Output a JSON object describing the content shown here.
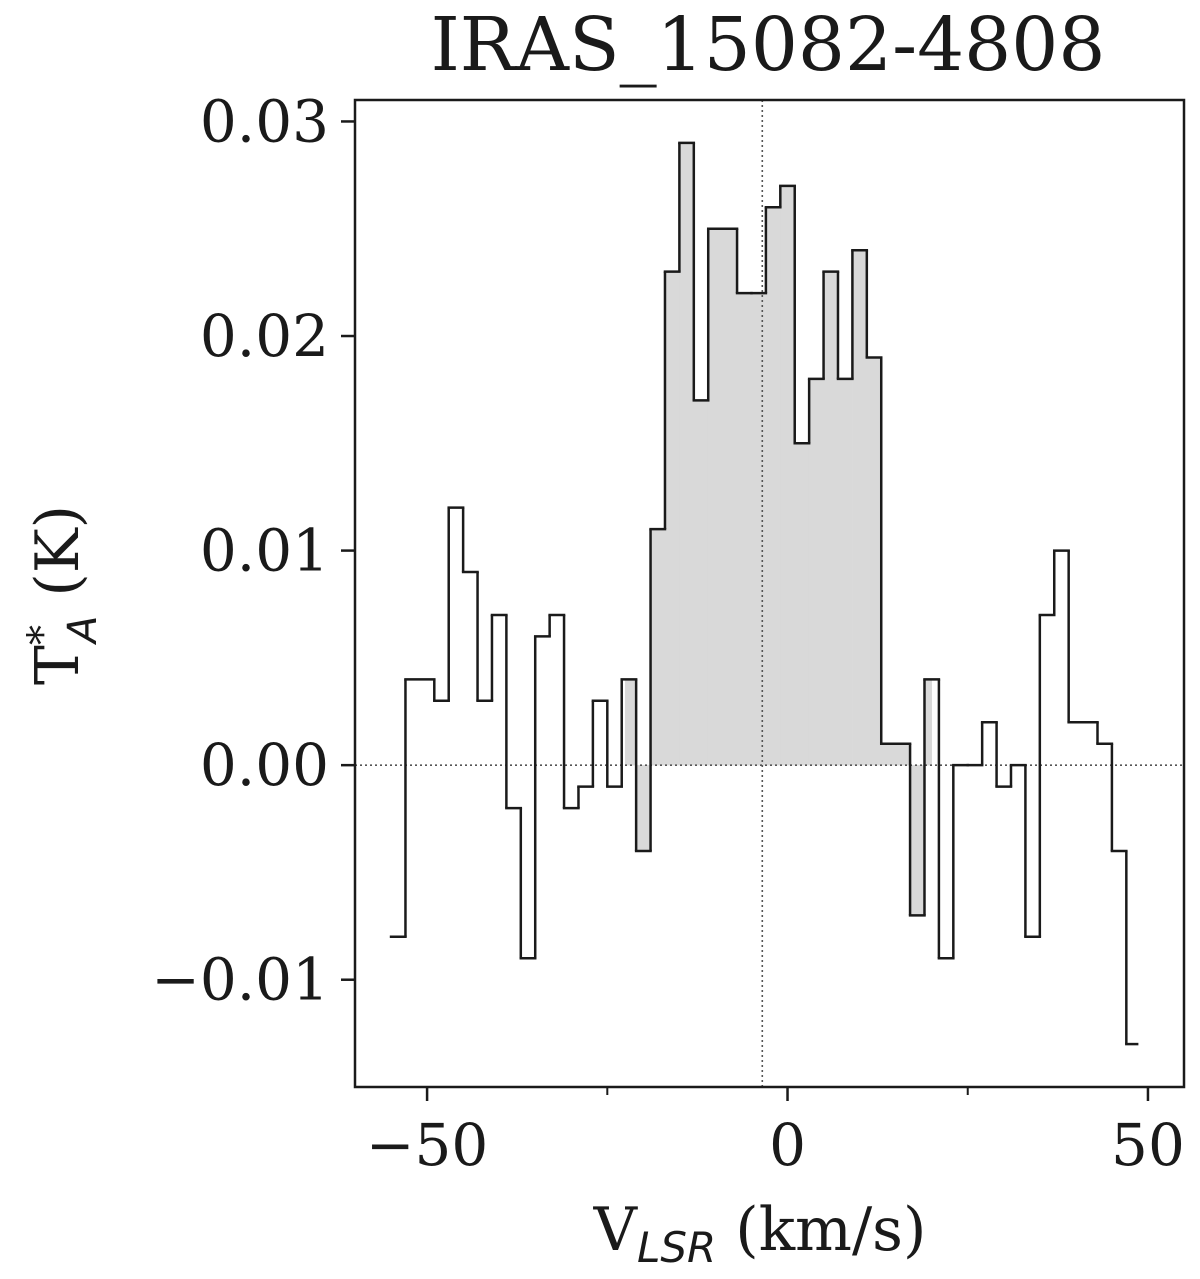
{
  "chart_data": {
    "type": "line",
    "style": "step-histogram",
    "title": "IRAS_15082-4808",
    "xlabel": "V",
    "xlabel_sub": "LSR",
    "xlabel_unit": " (km/s)",
    "ylabel": "T",
    "ylabel_sup": "*",
    "ylabel_sub": "A",
    "ylabel_unit": " (K)",
    "xlim": [
      -60,
      55
    ],
    "ylim": [
      -0.015,
      0.031
    ],
    "xticks": [
      -50,
      0,
      50
    ],
    "xtick_labels": [
      "−50",
      "0",
      "50"
    ],
    "x_minor_ticks": [
      -25,
      25
    ],
    "yticks": [
      -0.01,
      0.0,
      0.01,
      0.02,
      0.03
    ],
    "ytick_labels": [
      "−0.01",
      "0.00",
      "0.01",
      "0.02",
      "0.03"
    ],
    "grid": false,
    "reference_lines": {
      "horizontal_y": 0.0,
      "vertical_x": -3.5
    },
    "shaded_range": [
      -22.5,
      20
    ],
    "colors": {
      "line": "#1a1a1a",
      "fill": "#d9d9d9",
      "refline": "#555555"
    },
    "step_edges": [
      -55,
      -53,
      -49,
      -47,
      -45,
      -43,
      -41,
      -39,
      -37,
      -35,
      -33,
      -31,
      -29,
      -27,
      -25,
      -23,
      -21,
      -19,
      -17,
      -15,
      -13,
      -11,
      -9,
      -7,
      -5,
      -3,
      -1,
      1,
      3,
      5,
      7,
      9,
      11,
      13,
      15,
      17,
      19,
      21,
      23,
      25,
      27,
      29,
      31,
      33,
      35,
      37,
      39,
      41,
      43,
      45,
      47,
      48.5
    ],
    "values": [
      -0.008,
      0.004,
      0.003,
      0.012,
      0.009,
      0.003,
      0.007,
      -0.002,
      -0.009,
      0.006,
      0.007,
      -0.002,
      -0.001,
      0.003,
      -0.001,
      0.004,
      -0.004,
      0.011,
      0.023,
      0.029,
      0.017,
      0.025,
      0.025,
      0.022,
      0.022,
      0.026,
      0.027,
      0.015,
      0.018,
      0.023,
      0.018,
      0.024,
      0.019,
      0.001,
      0.001,
      -0.007,
      0.004,
      -0.009,
      0.0,
      0.0,
      0.002,
      -0.001,
      0.0,
      -0.008,
      0.007,
      0.01,
      0.002,
      0.002,
      0.001,
      -0.004,
      -0.013
    ]
  }
}
